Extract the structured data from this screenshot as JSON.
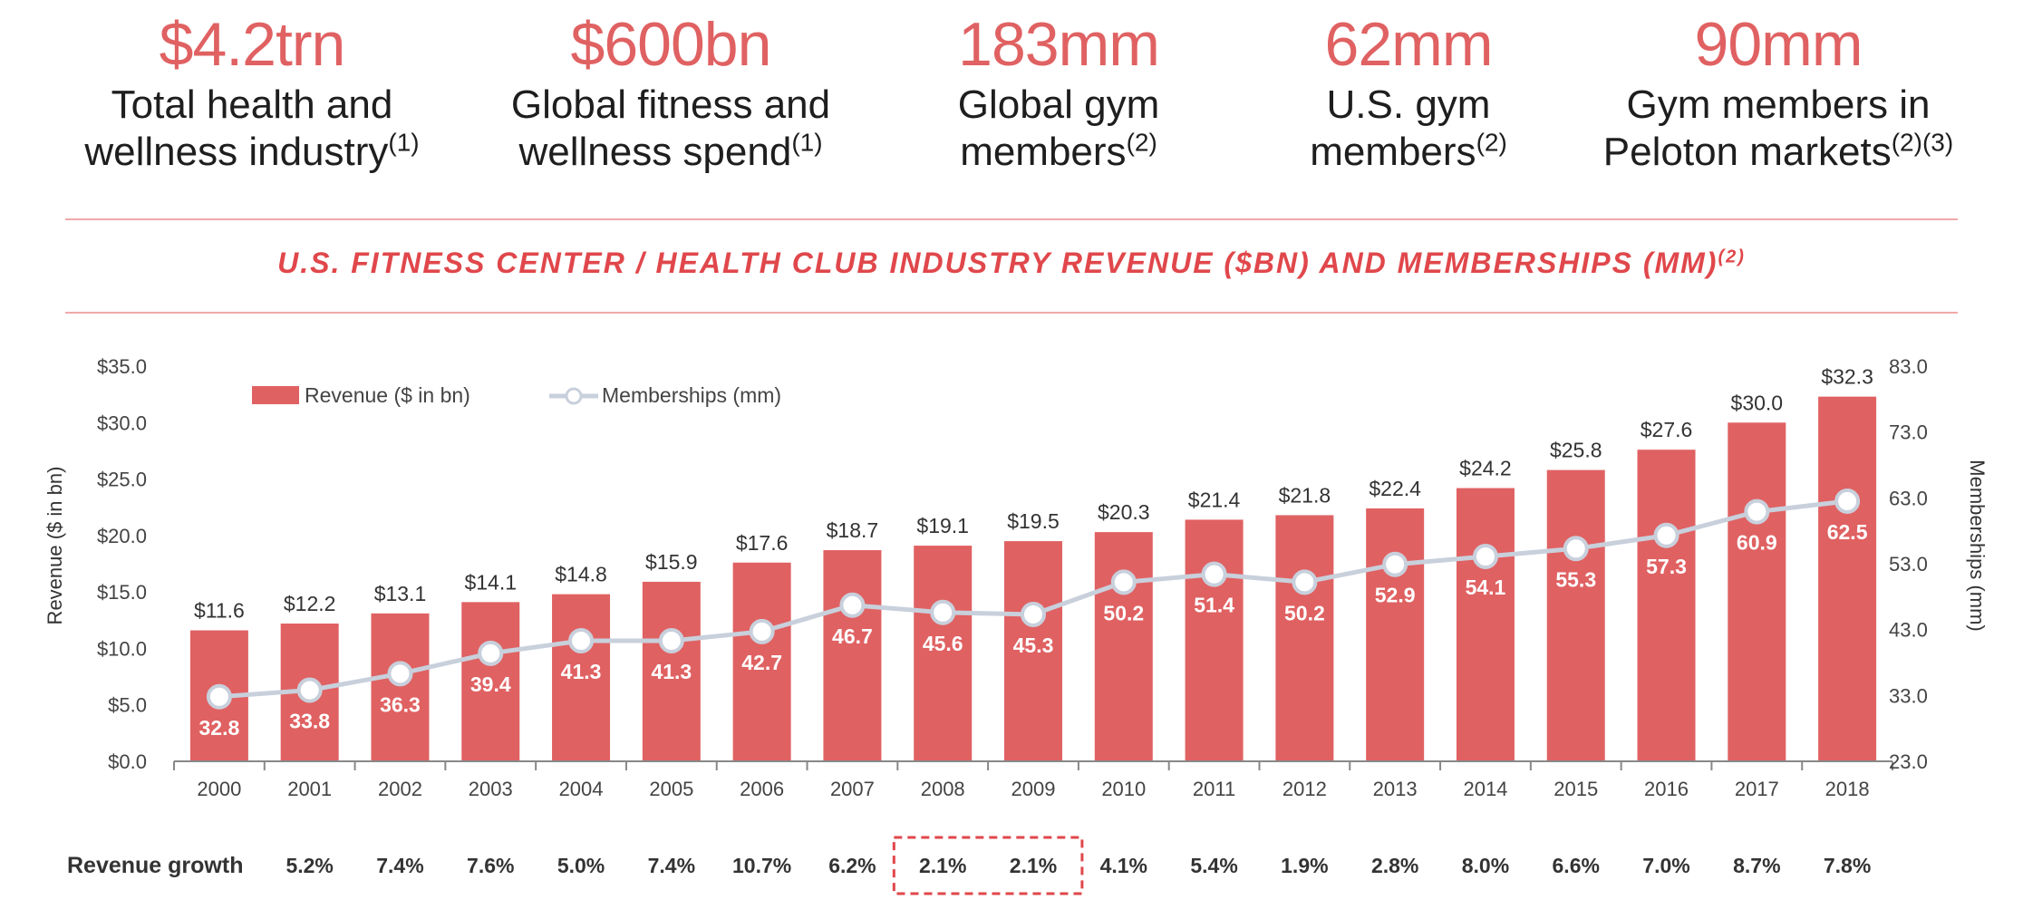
{
  "stats": [
    {
      "value": "$4.2trn",
      "line1": "Total health and",
      "line2": "wellness industry",
      "note": "(1)"
    },
    {
      "value": "$600bn",
      "line1": "Global fitness and",
      "line2": "wellness spend",
      "note": "(1)"
    },
    {
      "value": "183mm",
      "line1": "Global gym",
      "line2": "members",
      "note": "(2)"
    },
    {
      "value": "62mm",
      "line1": "U.S. gym",
      "line2": "members",
      "note": "(2)"
    },
    {
      "value": "90mm",
      "line1": "Gym members in",
      "line2": "Peloton markets",
      "note": "(2)(3)"
    }
  ],
  "colors": {
    "bar": "#e06162",
    "line": "#c8d0dc",
    "accent": "#e0474b"
  },
  "chart_data": {
    "type": "bar",
    "title": "U.S. FITNESS CENTER / HEALTH CLUB INDUSTRY REVENUE ($BN) AND MEMBERSHIPS (MM)",
    "title_note": "(2)",
    "categories": [
      "2000",
      "2001",
      "2002",
      "2003",
      "2004",
      "2005",
      "2006",
      "2007",
      "2008",
      "2009",
      "2010",
      "2011",
      "2012",
      "2013",
      "2014",
      "2015",
      "2016",
      "2017",
      "2018"
    ],
    "series": [
      {
        "name": "Revenue ($ in bn)",
        "type": "bar",
        "axis": "left",
        "values": [
          11.6,
          12.2,
          13.1,
          14.1,
          14.8,
          15.9,
          17.6,
          18.7,
          19.1,
          19.5,
          20.3,
          21.4,
          21.8,
          22.4,
          24.2,
          25.8,
          27.6,
          30.0,
          32.3
        ],
        "labels": [
          "$11.6",
          "$12.2",
          "$13.1",
          "$14.1",
          "$14.8",
          "$15.9",
          "$17.6",
          "$18.7",
          "$19.1",
          "$19.5",
          "$20.3",
          "$21.4",
          "$21.8",
          "$22.4",
          "$24.2",
          "$25.8",
          "$27.6",
          "$30.0",
          "$32.3"
        ]
      },
      {
        "name": "Memberships (mm)",
        "type": "line",
        "axis": "right",
        "values": [
          32.8,
          33.8,
          36.3,
          39.4,
          41.3,
          41.3,
          42.7,
          46.7,
          45.6,
          45.3,
          50.2,
          51.4,
          50.2,
          52.9,
          54.1,
          55.3,
          57.3,
          60.9,
          62.5
        ],
        "labels": [
          "32.8",
          "33.8",
          "36.3",
          "39.4",
          "41.3",
          "41.3",
          "42.7",
          "46.7",
          "45.6",
          "45.3",
          "50.2",
          "51.4",
          "50.2",
          "52.9",
          "54.1",
          "55.3",
          "57.3",
          "60.9",
          "62.5"
        ]
      }
    ],
    "ylabel": "Revenue ($ in bn)",
    "ylim": [
      0,
      35
    ],
    "yticks": [
      "$0.0",
      "$5.0",
      "$10.0",
      "$15.0",
      "$20.0",
      "$25.0",
      "$30.0",
      "$35.0"
    ],
    "y2label": "Memberships (mm)",
    "y2lim": [
      23,
      83
    ],
    "y2ticks": [
      "23.0",
      "33.0",
      "43.0",
      "53.0",
      "63.0",
      "73.0",
      "83.0"
    ],
    "legend": "top-left",
    "grid": false,
    "growth_label": "Revenue growth",
    "growth": [
      "5.2%",
      "7.4%",
      "7.6%",
      "5.0%",
      "7.4%",
      "10.7%",
      "6.2%",
      "2.1%",
      "2.1%",
      "4.1%",
      "5.4%",
      "1.9%",
      "2.8%",
      "8.0%",
      "6.6%",
      "7.0%",
      "8.7%",
      "7.8%"
    ],
    "highlight_years": [
      "2008",
      "2009"
    ]
  }
}
